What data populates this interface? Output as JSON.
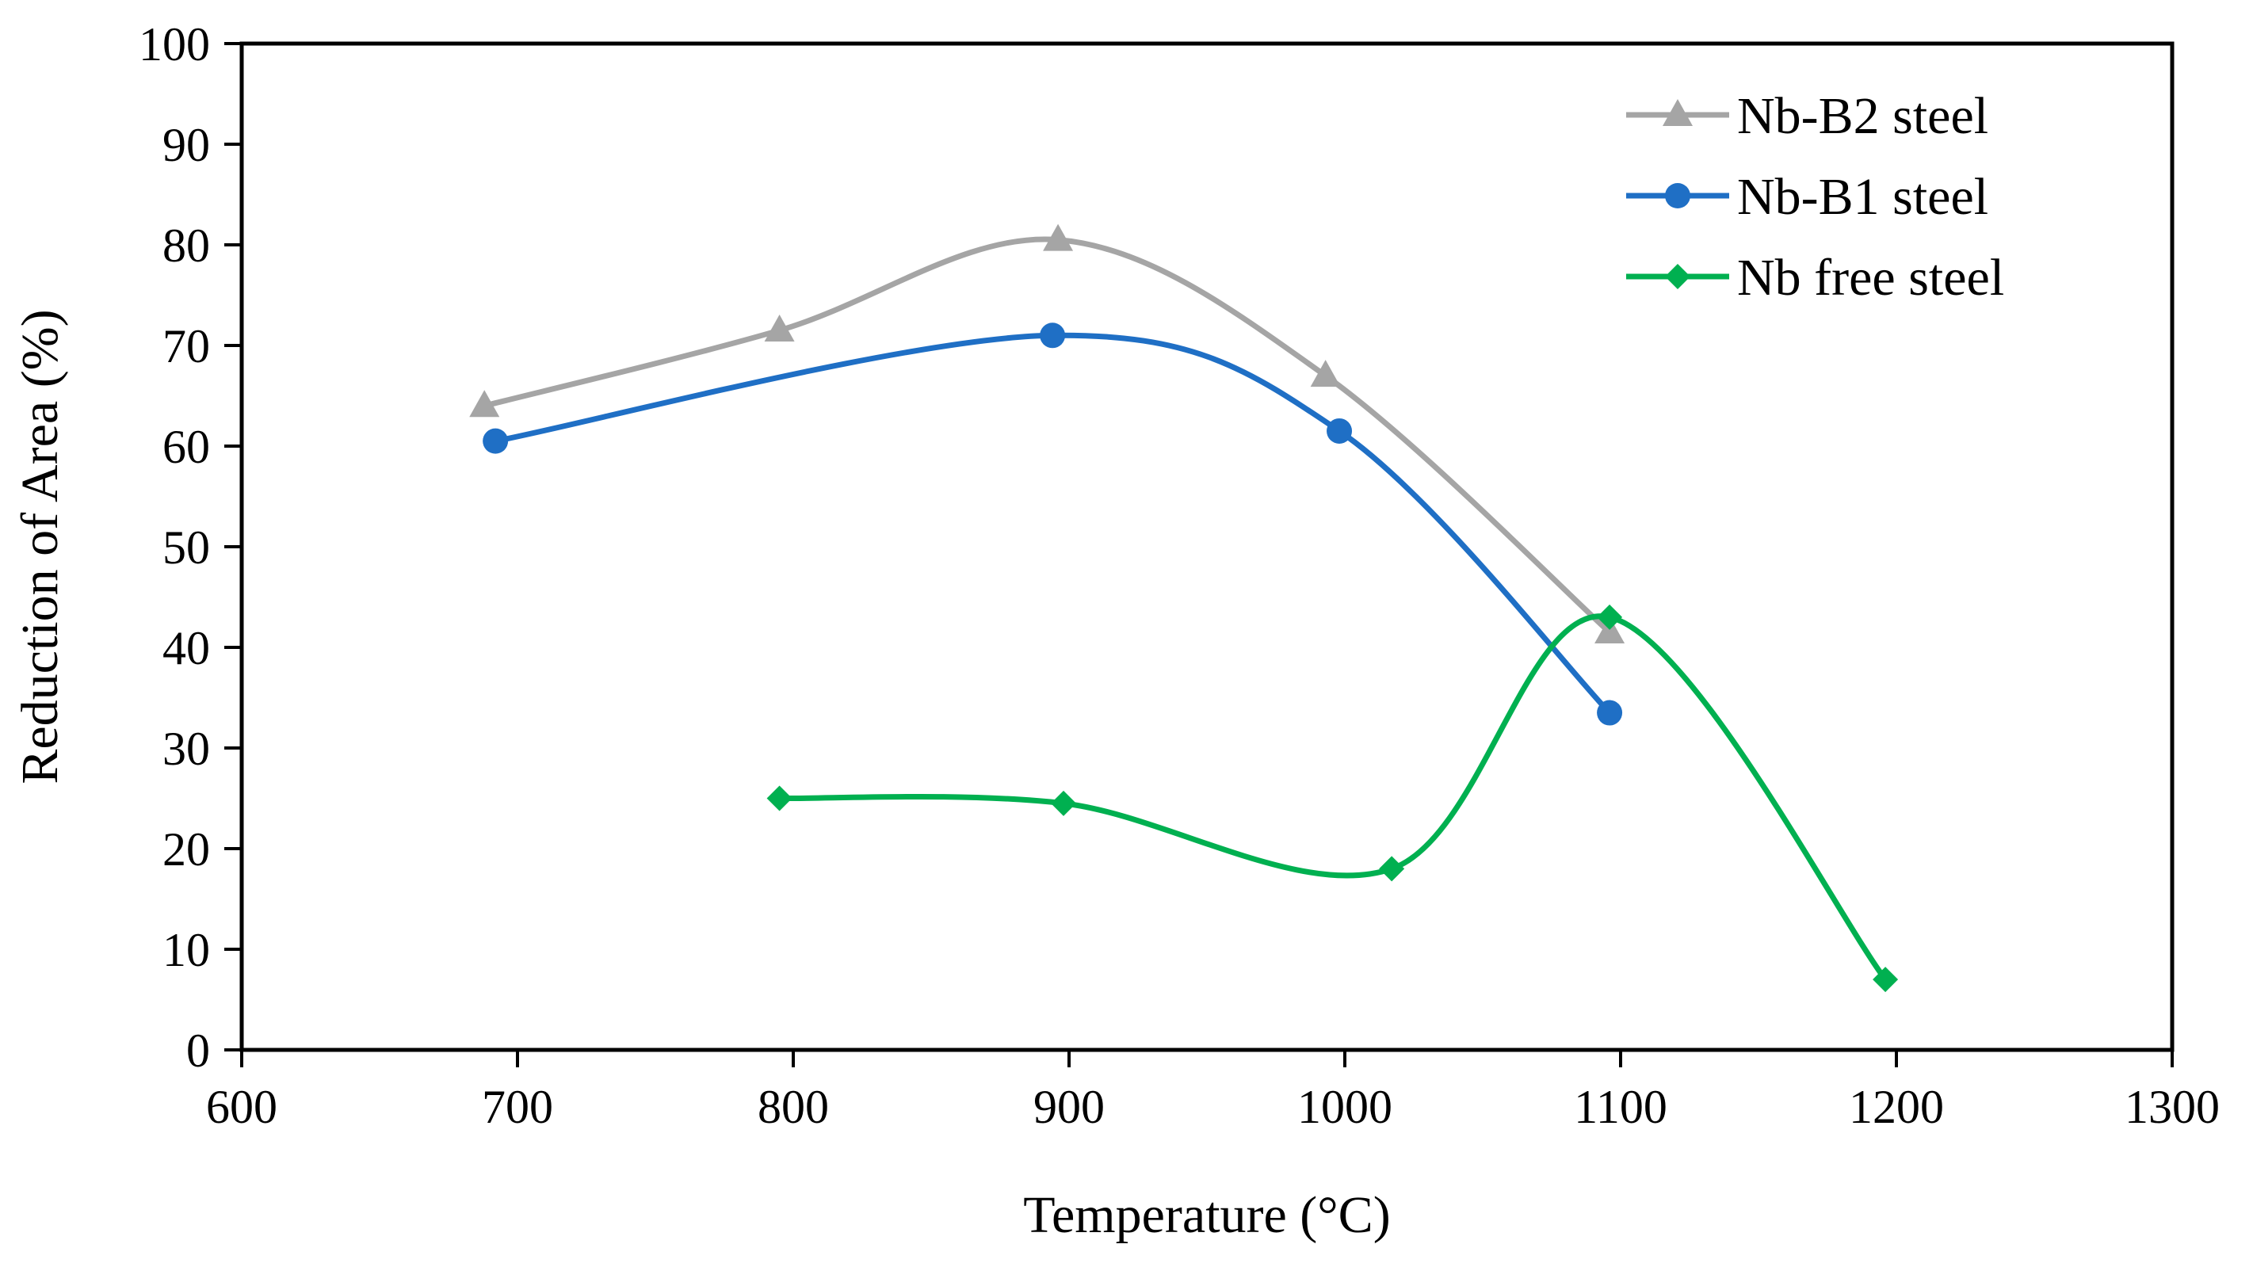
{
  "chart_data": {
    "type": "line",
    "title": "",
    "xlabel": "Temperature (°C)",
    "ylabel": "Reduction of Area (%)",
    "xlim": [
      600,
      1300
    ],
    "ylim": [
      0,
      100
    ],
    "x_ticks": [
      600,
      700,
      800,
      900,
      1000,
      1100,
      1200,
      1300
    ],
    "y_ticks": [
      0,
      10,
      20,
      30,
      40,
      50,
      60,
      70,
      80,
      90,
      100
    ],
    "grid": false,
    "legend_position": "top-right",
    "smooth": true,
    "series": [
      {
        "name": "Nb-B2 steel",
        "color": "#a5a5a5",
        "marker": "triangle",
        "points": [
          [
            688,
            64
          ],
          [
            795,
            71.5
          ],
          [
            896,
            80.5
          ],
          [
            993,
            67
          ],
          [
            1096,
            41.5
          ]
        ]
      },
      {
        "name": "Nb-B1 steel",
        "color": "#1f6fc5",
        "marker": "circle",
        "points": [
          [
            692,
            60.5
          ],
          [
            894,
            71
          ],
          [
            998,
            61.5
          ],
          [
            1096,
            33.5
          ]
        ]
      },
      {
        "name": "Nb free steel",
        "color": "#00b050",
        "marker": "diamond",
        "points": [
          [
            795,
            25
          ],
          [
            898,
            24.5
          ],
          [
            1017,
            18
          ],
          [
            1096,
            43
          ],
          [
            1196,
            7
          ]
        ]
      }
    ]
  }
}
